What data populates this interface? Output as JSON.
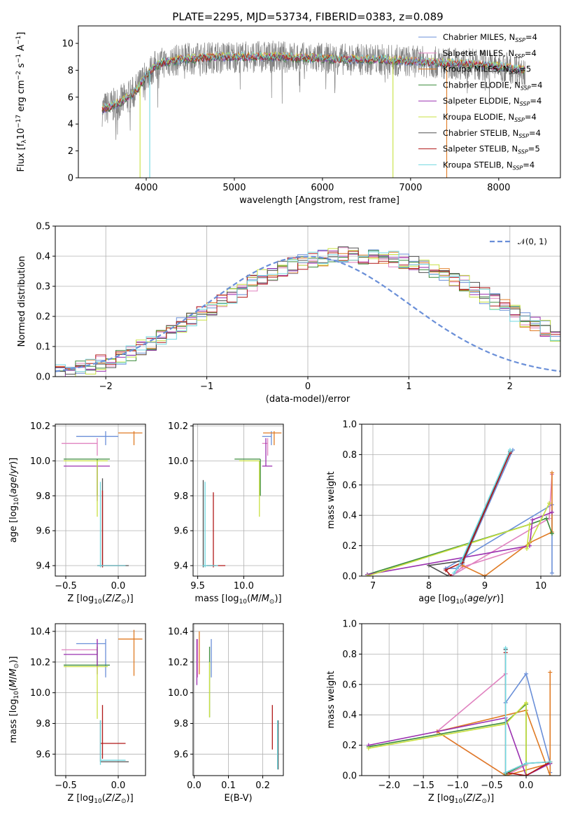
{
  "title": "PLATE=2295, MJD=53734, FIBERID=0383, z=0.089",
  "colors": {
    "chabrier_miles": "#6a8fd8",
    "salpeter_miles": "#e083c0",
    "kroupa_miles": "#e07b24",
    "chabrier_elodie": "#3c8c3c",
    "salpeter_elodie": "#9b30b0",
    "kroupa_elodie": "#c8e040",
    "chabrier_stelib": "#505050",
    "salpeter_stelib": "#b01818",
    "kroupa_stelib": "#70d8e0",
    "normal": "#6a8fd8",
    "data": "#808080"
  },
  "chart_data": [
    {
      "id": "spectrum",
      "type": "line",
      "xlabel": "wavelength [Angstrom, rest frame]",
      "ylabel": "Flux [f_λ 10^-17 erg cm^-2 s^-1 A^-1]",
      "xlim": [
        3230,
        8700
      ],
      "ylim": [
        0,
        11.3
      ],
      "xticks": [
        "4000",
        "5000",
        "6000",
        "7000",
        "8000"
      ],
      "yticks": [
        "0",
        "2",
        "4",
        "6",
        "8",
        "10"
      ],
      "grid": false,
      "legend_position": "top-right",
      "legend": [
        {
          "imf": "Chabrier",
          "lib": "MILES",
          "n": "4"
        },
        {
          "imf": "Salpeter",
          "lib": "MILES",
          "n": "4"
        },
        {
          "imf": "Kroupa",
          "lib": "MILES",
          "n": "5"
        },
        {
          "imf": "Chabrier",
          "lib": "ELODIE",
          "n": "4"
        },
        {
          "imf": "Salpeter",
          "lib": "ELODIE",
          "n": "4"
        },
        {
          "imf": "Kroupa",
          "lib": "ELODIE",
          "n": "4"
        },
        {
          "imf": "Chabrier",
          "lib": "STELIB",
          "n": "4"
        },
        {
          "imf": "Salpeter",
          "lib": "STELIB",
          "n": "5"
        },
        {
          "imf": "Kroupa",
          "lib": "STELIB",
          "n": "4"
        }
      ],
      "continuum": {
        "x": [
          3500,
          3600,
          3700,
          3800,
          3900,
          4000,
          4100,
          4200,
          4400,
          4600,
          4800,
          5000,
          5200,
          5500,
          5800,
          6000,
          6300,
          6600,
          6900,
          7200,
          7500,
          7800,
          8100,
          8300
        ],
        "y": [
          5.1,
          5.3,
          5.6,
          6.0,
          6.6,
          7.6,
          8.3,
          8.6,
          8.8,
          8.9,
          9.0,
          9.0,
          9.0,
          9.0,
          8.9,
          8.9,
          8.8,
          8.8,
          8.7,
          8.6,
          8.5,
          8.4,
          8.2,
          8.0
        ]
      },
      "spikes": [
        3930,
        4040,
        6800,
        7410
      ]
    },
    {
      "id": "residuals",
      "type": "bar",
      "xlabel": "(data-model)/error",
      "ylabel": "Normed distribution",
      "xlim": [
        -2.5,
        2.5
      ],
      "ylim": [
        0,
        0.5
      ],
      "xticks": [
        "−2",
        "−1",
        "0",
        "1",
        "2"
      ],
      "yticks": [
        "0.0",
        "0.1",
        "0.2",
        "0.3",
        "0.4",
        "0.5"
      ],
      "grid": true,
      "legend_position": "top-right",
      "legend": [
        "𝒩(0, 1)"
      ],
      "bin_width": 0.1,
      "base_values": [
        0.02,
        0.025,
        0.03,
        0.035,
        0.045,
        0.055,
        0.065,
        0.08,
        0.095,
        0.11,
        0.13,
        0.15,
        0.17,
        0.19,
        0.21,
        0.23,
        0.25,
        0.27,
        0.29,
        0.31,
        0.33,
        0.345,
        0.36,
        0.37,
        0.38,
        0.39,
        0.395,
        0.4,
        0.405,
        0.405,
        0.4,
        0.4,
        0.395,
        0.39,
        0.385,
        0.375,
        0.365,
        0.355,
        0.34,
        0.325,
        0.31,
        0.29,
        0.27,
        0.25,
        0.23,
        0.21,
        0.19,
        0.175,
        0.16,
        0.14,
        0.125,
        0.11,
        0.095,
        0.08,
        0.07,
        0.06,
        0.05,
        0.04,
        0.03,
        0.02
      ]
    },
    {
      "id": "age_vs_Z",
      "type": "scatter",
      "xlabel": "Z [log10(Z/Z⊙)]",
      "ylabel": "age [log10(age/yr)]",
      "xlim": [
        -0.6,
        0.26
      ],
      "ylim": [
        9.34,
        10.21
      ],
      "xticks": [
        "−0.5",
        "0.0"
      ],
      "yticks": [
        "9.4",
        "9.6",
        "9.8",
        "10.0",
        "10.2"
      ],
      "grid": true,
      "points": [
        {
          "c": "chabrier_miles",
          "x": -0.12,
          "xe": [
            -0.4,
            0.0
          ],
          "y": 10.14,
          "ye": [
            10.09,
            10.17
          ]
        },
        {
          "c": "salpeter_miles",
          "x": -0.2,
          "xe": [
            -0.54,
            -0.2
          ],
          "y": 10.1,
          "ye": [
            10.03,
            10.13
          ]
        },
        {
          "c": "kroupa_miles",
          "x": 0.15,
          "xe": [
            0.0,
            0.23
          ],
          "y": 10.16,
          "ye": [
            10.09,
            10.17
          ]
        },
        {
          "c": "chabrier_elodie",
          "x": -0.2,
          "xe": [
            -0.52,
            -0.08
          ],
          "y": 10.01,
          "ye": [
            9.8,
            10.01
          ]
        },
        {
          "c": "salpeter_elodie",
          "x": -0.2,
          "xe": [
            -0.52,
            -0.08
          ],
          "y": 9.97,
          "ye": [
            9.77,
            9.97
          ]
        },
        {
          "c": "kroupa_elodie",
          "x": -0.2,
          "xe": [
            -0.52,
            -0.1
          ],
          "y": 10.0,
          "ye": [
            9.68,
            10.0
          ]
        },
        {
          "c": "chabrier_stelib",
          "x": -0.15,
          "xe": [
            -0.2,
            0.1
          ],
          "y": 9.4,
          "ye": [
            9.39,
            9.9
          ]
        },
        {
          "c": "salpeter_stelib",
          "x": -0.15,
          "xe": [
            -0.2,
            0.07
          ],
          "y": 9.4,
          "ye": [
            9.39,
            9.83
          ]
        },
        {
          "c": "kroupa_stelib",
          "x": -0.17,
          "xe": [
            -0.2,
            0.07
          ],
          "y": 9.4,
          "ye": [
            9.39,
            9.88
          ]
        }
      ]
    },
    {
      "id": "age_vs_mass",
      "type": "scatter",
      "xlabel": "mass [log10(M/M⊙)]",
      "ylabel": "",
      "xlim": [
        9.45,
        10.43
      ],
      "ylim": [
        9.34,
        10.21
      ],
      "xticks": [
        "9.5",
        "10.0"
      ],
      "yticks": [
        "9.4",
        "9.6",
        "9.8",
        "10.0",
        "10.2"
      ],
      "grid": true,
      "points": [
        {
          "c": "chabrier_miles",
          "x": 10.3,
          "xe": [
            10.2,
            10.3
          ],
          "y": 10.14,
          "ye": [
            10.09,
            10.17
          ]
        },
        {
          "c": "salpeter_miles",
          "x": 10.26,
          "xe": [
            10.2,
            10.26
          ],
          "y": 10.1,
          "ye": [
            10.03,
            10.13
          ]
        },
        {
          "c": "kroupa_miles",
          "x": 10.33,
          "xe": [
            10.21,
            10.41
          ],
          "y": 10.16,
          "ye": [
            10.09,
            10.17
          ]
        },
        {
          "c": "chabrier_elodie",
          "x": 10.18,
          "xe": [
            9.9,
            10.18
          ],
          "y": 10.01,
          "ye": [
            9.8,
            10.01
          ]
        },
        {
          "c": "salpeter_elodie",
          "x": 10.24,
          "xe": [
            10.2,
            10.31
          ],
          "y": 9.97,
          "ye": [
            9.97,
            10.13
          ]
        },
        {
          "c": "kroupa_elodie",
          "x": 10.17,
          "xe": [
            9.95,
            10.17
          ],
          "y": 10.0,
          "ye": [
            9.68,
            10.0
          ]
        },
        {
          "c": "chabrier_stelib",
          "x": 9.56,
          "xe": [
            9.56,
            9.7
          ],
          "y": 9.4,
          "ye": [
            9.39,
            9.89
          ]
        },
        {
          "c": "salpeter_stelib",
          "x": 9.67,
          "xe": [
            9.6,
            9.8
          ],
          "y": 9.4,
          "ye": [
            9.39,
            9.82
          ]
        },
        {
          "c": "kroupa_stelib",
          "x": 9.58,
          "xe": [
            9.55,
            9.72
          ],
          "y": 9.4,
          "ye": [
            9.39,
            9.88
          ]
        }
      ]
    },
    {
      "id": "weight_vs_age",
      "type": "line",
      "xlabel": "age [log10(age/yr)]",
      "ylabel": "mass weight",
      "xlim": [
        6.8,
        10.35
      ],
      "ylim": [
        0,
        1
      ],
      "xticks": [
        "7",
        "8",
        "9",
        "10"
      ],
      "yticks": [
        "0.0",
        "0.2",
        "0.4",
        "0.6",
        "0.8",
        "1.0"
      ],
      "grid": true,
      "series": [
        {
          "c": "chabrier_miles",
          "x": [
            9.5,
            8.6,
            8.5,
            8.3,
            10.2,
            10.2
          ],
          "y": [
            0.83,
            0.08,
            0.05,
            0.05,
            0.47,
            0.02
          ]
        },
        {
          "c": "salpeter_miles",
          "x": [
            10.2,
            10.15,
            8.4,
            8.6,
            9.8
          ],
          "y": [
            0.67,
            0.38,
            0.0,
            0.06,
            0.2
          ]
        },
        {
          "c": "kroupa_miles",
          "x": [
            10.2,
            10.2,
            9.8,
            9.0,
            8.6
          ],
          "y": [
            0.68,
            0.29,
            0.22,
            0.0,
            0.07
          ]
        },
        {
          "c": "chabrier_elodie",
          "x": [
            6.9,
            9.8,
            10.1,
            10.2
          ],
          "y": [
            0.01,
            0.34,
            0.38,
            0.28
          ]
        },
        {
          "c": "salpeter_elodie",
          "x": [
            6.9,
            9.8,
            9.85,
            10.2
          ],
          "y": [
            0.01,
            0.2,
            0.37,
            0.42
          ]
        },
        {
          "c": "kroupa_elodie",
          "x": [
            6.9,
            9.8,
            9.75,
            10.15
          ],
          "y": [
            0.0,
            0.34,
            0.18,
            0.48
          ]
        },
        {
          "c": "chabrier_stelib",
          "x": [
            9.45,
            8.6,
            8.0,
            8.35
          ],
          "y": [
            0.82,
            0.1,
            0.07,
            0.0
          ]
        },
        {
          "c": "salpeter_stelib",
          "x": [
            9.45,
            8.6,
            8.3,
            8.4
          ],
          "y": [
            0.81,
            0.09,
            0.04,
            0.0
          ]
        },
        {
          "c": "kroupa_stelib",
          "x": [
            9.45,
            8.58,
            8.45
          ],
          "y": [
            0.83,
            0.1,
            0.02
          ]
        }
      ]
    },
    {
      "id": "mass_vs_Z",
      "type": "scatter",
      "xlabel": "Z [log10(Z/Z⊙)]",
      "ylabel": "mass [log10(M/M⊙)]",
      "xlim": [
        -0.6,
        0.26
      ],
      "ylim": [
        9.46,
        10.45
      ],
      "xticks": [
        "−0.5",
        "0.0"
      ],
      "yticks": [
        "9.6",
        "9.8",
        "10.0",
        "10.2",
        "10.4"
      ],
      "grid": true,
      "points": [
        {
          "c": "chabrier_miles",
          "x": -0.12,
          "xe": [
            -0.4,
            -0.12
          ],
          "y": 10.32,
          "ye": [
            10.1,
            10.35
          ]
        },
        {
          "c": "salpeter_miles",
          "x": -0.2,
          "xe": [
            -0.54,
            -0.2
          ],
          "y": 10.28,
          "ye": [
            10.25,
            10.35
          ]
        },
        {
          "c": "kroupa_miles",
          "x": 0.15,
          "xe": [
            0.0,
            0.23
          ],
          "y": 10.35,
          "ye": [
            10.11,
            10.41
          ]
        },
        {
          "c": "chabrier_elodie",
          "x": -0.2,
          "xe": [
            -0.52,
            -0.08
          ],
          "y": 10.18,
          "ye": [
            10.18,
            10.3
          ]
        },
        {
          "c": "salpeter_elodie",
          "x": -0.2,
          "xe": [
            -0.52,
            -0.2
          ],
          "y": 10.25,
          "ye": [
            10.12,
            10.35
          ]
        },
        {
          "c": "kroupa_elodie",
          "x": -0.2,
          "xe": [
            -0.52,
            -0.1
          ],
          "y": 10.17,
          "ye": [
            9.83,
            10.17
          ]
        },
        {
          "c": "chabrier_stelib",
          "x": -0.17,
          "xe": [
            -0.17,
            0.1
          ],
          "y": 9.55,
          "ye": [
            9.55,
            9.82
          ]
        },
        {
          "c": "salpeter_stelib",
          "x": -0.15,
          "xe": [
            -0.17,
            0.07
          ],
          "y": 9.67,
          "ye": [
            9.57,
            9.92
          ]
        },
        {
          "c": "kroupa_stelib",
          "x": -0.17,
          "xe": [
            -0.17,
            0.07
          ],
          "y": 9.56,
          "ye": [
            9.53,
            9.82
          ]
        }
      ]
    },
    {
      "id": "mass_vs_ebv",
      "type": "scatter",
      "xlabel": "E(B-V)",
      "ylabel": "",
      "xlim": [
        -0.003,
        0.26
      ],
      "ylim": [
        9.46,
        10.45
      ],
      "xticks": [
        "0.0",
        "0.1",
        "0.2"
      ],
      "yticks": [
        "9.6",
        "9.8",
        "10.0",
        "10.2",
        "10.4"
      ],
      "grid": true,
      "points": [
        {
          "c": "chabrier_miles",
          "x": 0.05,
          "ye": [
            10.1,
            10.35
          ]
        },
        {
          "c": "salpeter_miles",
          "x": 0.01,
          "ye": [
            10.1,
            10.35
          ]
        },
        {
          "c": "kroupa_miles",
          "x": 0.015,
          "ye": [
            10.12,
            10.4
          ]
        },
        {
          "c": "chabrier_elodie",
          "x": 0.045,
          "ye": [
            9.84,
            10.3
          ]
        },
        {
          "c": "salpeter_elodie",
          "x": 0.008,
          "ye": [
            10.05,
            10.35
          ]
        },
        {
          "c": "kroupa_elodie",
          "x": 0.045,
          "ye": [
            9.84,
            10.2
          ]
        },
        {
          "c": "chabrier_stelib",
          "x": 0.245,
          "ye": [
            9.5,
            9.82
          ]
        },
        {
          "c": "salpeter_stelib",
          "x": 0.228,
          "ye": [
            9.63,
            9.92
          ]
        },
        {
          "c": "kroupa_stelib",
          "x": 0.243,
          "ye": [
            9.5,
            9.82
          ]
        }
      ]
    },
    {
      "id": "weight_vs_Z",
      "type": "line",
      "xlabel": "Z [log10(Z/Z⊙)]",
      "ylabel": "mass weight",
      "xlim": [
        -2.4,
        0.5
      ],
      "ylim": [
        0,
        1
      ],
      "xticks": [
        "−2.0",
        "−1.5",
        "−1.0",
        "−0.5",
        "0.0"
      ],
      "yticks": [
        "0.0",
        "0.2",
        "0.4",
        "0.6",
        "0.8",
        "1.0"
      ],
      "grid": true,
      "series": [
        {
          "c": "chabrier_miles",
          "x": [
            -0.3,
            -0.3,
            0.0,
            0.35,
            0.35
          ],
          "y": [
            0.83,
            0.48,
            0.67,
            0.08,
            0.02
          ]
        },
        {
          "c": "salpeter_miles",
          "x": [
            -0.3,
            -1.3,
            -0.3,
            0.0
          ],
          "y": [
            0.67,
            0.29,
            0.0,
            0.07
          ]
        },
        {
          "c": "kroupa_miles",
          "x": [
            0.35,
            0.35,
            0.0,
            -1.3,
            -0.3,
            0.35
          ],
          "y": [
            0.68,
            0.0,
            0.43,
            0.29,
            0.0,
            0.08
          ]
        },
        {
          "c": "chabrier_elodie",
          "x": [
            -2.3,
            -0.3,
            0.0,
            0.0,
            -0.3
          ],
          "y": [
            0.19,
            0.35,
            0.47,
            0.08,
            0.01
          ]
        },
        {
          "c": "salpeter_elodie",
          "x": [
            -2.3,
            -0.3,
            0.0,
            0.35
          ],
          "y": [
            0.2,
            0.38,
            0.0,
            0.08
          ]
        },
        {
          "c": "kroupa_elodie",
          "x": [
            -2.3,
            -0.3,
            0.0,
            0.0
          ],
          "y": [
            0.18,
            0.34,
            0.48,
            0.0
          ]
        },
        {
          "c": "chabrier_stelib",
          "x": [
            -0.3,
            -0.3,
            0.0,
            0.35
          ],
          "y": [
            0.83,
            0.02,
            0.08,
            0.09
          ]
        },
        {
          "c": "salpeter_stelib",
          "x": [
            -0.3,
            -0.3,
            0.0,
            0.35
          ],
          "y": [
            0.81,
            0.02,
            0.0,
            0.09
          ]
        },
        {
          "c": "kroupa_stelib",
          "x": [
            -0.3,
            -0.3,
            0.0,
            0.35
          ],
          "y": [
            0.84,
            0.02,
            0.08,
            0.09
          ]
        }
      ]
    }
  ]
}
